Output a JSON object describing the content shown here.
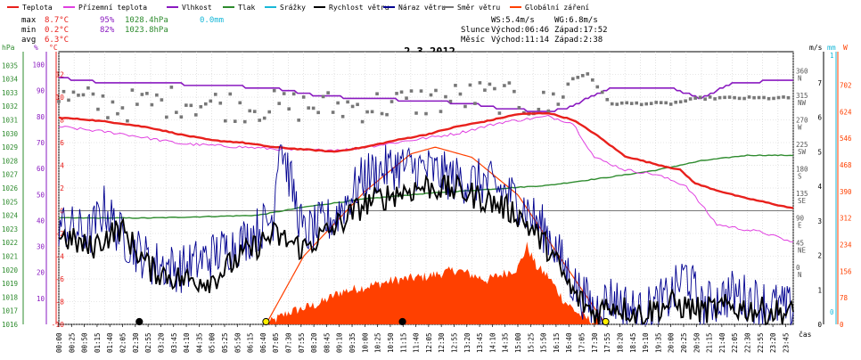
{
  "chart_data": {
    "type": "line",
    "title": "2.3.2012",
    "legend": [
      {
        "label": "Teplota",
        "color": "#e8201c"
      },
      {
        "label": "Přízemní teplota",
        "color": "#e040e0"
      },
      {
        "label": "Vlhkost",
        "color": "#8a1ac0"
      },
      {
        "label": "Tlak",
        "color": "#2e8b2e"
      },
      {
        "label": "Srážky",
        "color": "#19b8d8"
      },
      {
        "label": "Rychlost větru",
        "color": "#000000"
      },
      {
        "label": "Náraz větru",
        "color": "#000090"
      },
      {
        "label": "Směr větru",
        "color": "#777777"
      },
      {
        "label": "Globální záření",
        "color": "#ff4000"
      }
    ],
    "stats": {
      "max_label": "max",
      "max_temp": "8.7°C",
      "max_hum": "95%",
      "max_press": "1028.4hPa",
      "rain": "0.0mm",
      "min_label": "min",
      "min_temp": "0.2°C",
      "min_hum": "82%",
      "min_press": "1023.8hPa",
      "avg_label": "avg",
      "avg_temp": "6.3°C"
    },
    "sun_moon": {
      "ws": "WS:5.4m/s",
      "wg": "WG:6.8m/s",
      "sun_label": "Slunce",
      "sun_rise": "Východ:06:46",
      "sun_set": "Západ:17:52",
      "moon_label": "Měsíc",
      "moon_rise": "Východ:11:14",
      "moon_set": "Západ:2:38"
    },
    "axes": {
      "hpa_unit": "hPa",
      "hum_unit": "%",
      "temp_unit": "°C",
      "ms_unit": "m/s",
      "mm_unit": "mm",
      "w_unit": "W",
      "time_label": "čas",
      "hpa_ticks": [
        "1035",
        "1034",
        "1033",
        "1032",
        "1031",
        "1030",
        "1029",
        "1028",
        "1027",
        "1026",
        "1025",
        "1024",
        "1023",
        "1022",
        "1021",
        "1020",
        "1019",
        "1018",
        "1017",
        "1016"
      ],
      "hum_ticks": [
        "100",
        "90",
        "80",
        "70",
        "60",
        "50",
        "40",
        "30",
        "20",
        "10"
      ],
      "temp_ticks": [
        "12",
        "10",
        "8",
        "6",
        "4",
        "2",
        "0",
        "-2",
        "-4",
        "-6",
        "-8",
        "-10"
      ],
      "dir_ticks": [
        {
          "deg": "360",
          "dir": "N"
        },
        {
          "deg": "315",
          "dir": "NW"
        },
        {
          "deg": "270",
          "dir": "W"
        },
        {
          "deg": "225",
          "dir": "SW"
        },
        {
          "deg": "180",
          "dir": "S"
        },
        {
          "deg": "135",
          "dir": "SE"
        },
        {
          "deg": "90",
          "dir": "E"
        },
        {
          "deg": "45",
          "dir": "NE"
        },
        {
          "deg": "0",
          "dir": "N"
        }
      ],
      "wind_ticks": [
        "7",
        "6",
        "5",
        "4",
        "3",
        "2",
        "1",
        "0"
      ],
      "mm_ticks": [
        "1",
        "0"
      ],
      "rad_ticks": [
        "702",
        "624",
        "546",
        "468",
        "390",
        "312",
        "234",
        "156",
        "78",
        "0"
      ],
      "time_ticks": [
        "00:00",
        "00:25",
        "00:50",
        "01:15",
        "01:40",
        "02:05",
        "02:30",
        "02:55",
        "03:20",
        "03:45",
        "04:10",
        "04:35",
        "05:00",
        "05:25",
        "05:50",
        "06:15",
        "06:40",
        "07:05",
        "07:30",
        "07:55",
        "08:20",
        "08:45",
        "09:10",
        "09:35",
        "10:00",
        "10:25",
        "10:50",
        "11:15",
        "11:40",
        "12:05",
        "12:30",
        "12:55",
        "13:20",
        "13:45",
        "14:10",
        "14:35",
        "15:00",
        "15:25",
        "15:50",
        "16:15",
        "16:40",
        "17:05",
        "17:30",
        "17:55",
        "18:20",
        "18:45",
        "19:10",
        "19:35",
        "20:00",
        "20:25",
        "20:50",
        "21:15",
        "21:40",
        "22:05",
        "22:30",
        "22:55",
        "23:20",
        "23:45"
      ]
    },
    "series_keyframes": {
      "temperature_c": [
        [
          0,
          8.2
        ],
        [
          1,
          8.0
        ],
        [
          2,
          7.7
        ],
        [
          3,
          7.3
        ],
        [
          4,
          6.7
        ],
        [
          5,
          6.2
        ],
        [
          6,
          6.0
        ],
        [
          7,
          5.6
        ],
        [
          8,
          5.4
        ],
        [
          9,
          5.2
        ],
        [
          10,
          5.6
        ],
        [
          11,
          6.2
        ],
        [
          12,
          6.7
        ],
        [
          13,
          7.4
        ],
        [
          14,
          7.9
        ],
        [
          15,
          8.5
        ],
        [
          16,
          8.6
        ],
        [
          16.8,
          8.0
        ],
        [
          17.5,
          6.8
        ],
        [
          18.5,
          4.8
        ],
        [
          19.5,
          4.1
        ],
        [
          20.3,
          3.6
        ],
        [
          20.8,
          2.4
        ],
        [
          21.5,
          1.8
        ],
        [
          22.3,
          1.2
        ],
        [
          23,
          0.8
        ],
        [
          24,
          0.2
        ]
      ],
      "ground_temp_c": [
        [
          0,
          7.4
        ],
        [
          2,
          6.8
        ],
        [
          4,
          5.9
        ],
        [
          6,
          5.6
        ],
        [
          8,
          5.3
        ],
        [
          9.5,
          5.4
        ],
        [
          11,
          6.0
        ],
        [
          13,
          6.8
        ],
        [
          14.5,
          7.8
        ],
        [
          16,
          8.3
        ],
        [
          16.8,
          7.7
        ],
        [
          17.5,
          4.7
        ],
        [
          18.5,
          3.6
        ],
        [
          19.5,
          3.2
        ],
        [
          20.5,
          2.2
        ],
        [
          21,
          0.5
        ],
        [
          21.5,
          -1.2
        ],
        [
          22.3,
          -1.6
        ],
        [
          23,
          -1.9
        ],
        [
          24,
          -2.8
        ]
      ],
      "humidity_pct": [
        [
          0,
          95
        ],
        [
          1.5,
          93
        ],
        [
          3,
          93
        ],
        [
          5,
          92
        ],
        [
          7,
          91
        ],
        [
          8.5,
          88
        ],
        [
          10,
          87
        ],
        [
          12,
          86
        ],
        [
          13.5,
          85
        ],
        [
          14.5,
          83
        ],
        [
          16,
          82
        ],
        [
          16.8,
          84
        ],
        [
          17.2,
          87
        ],
        [
          18,
          91
        ],
        [
          19,
          91
        ],
        [
          20,
          91
        ],
        [
          21,
          87
        ],
        [
          22,
          93
        ],
        [
          24,
          94
        ]
      ],
      "pressure_hpa": [
        [
          0,
          1023.8
        ],
        [
          3,
          1023.8
        ],
        [
          6.5,
          1024.0
        ],
        [
          8,
          1024.6
        ],
        [
          10,
          1025.2
        ],
        [
          12,
          1025.6
        ],
        [
          14,
          1025.9
        ],
        [
          16,
          1026.2
        ],
        [
          18,
          1026.8
        ],
        [
          19.5,
          1027.3
        ],
        [
          21,
          1028.0
        ],
        [
          22.5,
          1028.4
        ],
        [
          24,
          1028.4
        ]
      ],
      "wind_speed_ms": [
        [
          0,
          2.6
        ],
        [
          1,
          2.2
        ],
        [
          2,
          2.8
        ],
        [
          3,
          1.6
        ],
        [
          4,
          1.3
        ],
        [
          5,
          1.3
        ],
        [
          6,
          2.0
        ],
        [
          7,
          2.6
        ],
        [
          8,
          2.2
        ],
        [
          9,
          2.8
        ],
        [
          10,
          3.5
        ],
        [
          11,
          3.8
        ],
        [
          12,
          4.0
        ],
        [
          13,
          3.9
        ],
        [
          14,
          3.6
        ],
        [
          15,
          3.2
        ],
        [
          16,
          2.2
        ],
        [
          16.8,
          0.9
        ],
        [
          17.5,
          0.3
        ],
        [
          18,
          0.6
        ],
        [
          19,
          0.3
        ],
        [
          20,
          0.6
        ],
        [
          21,
          0.4
        ],
        [
          22,
          0.5
        ],
        [
          24,
          0.3
        ]
      ],
      "wind_gust_ms": [
        [
          0,
          2.9
        ],
        [
          1,
          2.6
        ],
        [
          1.5,
          3.4
        ],
        [
          2,
          2.6
        ],
        [
          3,
          1.8
        ],
        [
          4,
          1.6
        ],
        [
          6,
          2.4
        ],
        [
          7,
          3.1
        ],
        [
          7.2,
          5.5
        ],
        [
          8,
          2.6
        ],
        [
          9,
          3.1
        ],
        [
          10,
          4.3
        ],
        [
          11,
          4.6
        ],
        [
          12,
          4.5
        ],
        [
          13,
          4.2
        ],
        [
          14,
          4.1
        ],
        [
          15,
          3.6
        ],
        [
          16,
          2.6
        ],
        [
          16.8,
          1.2
        ],
        [
          17.5,
          0.4
        ],
        [
          18,
          0.8
        ],
        [
          19,
          0.3
        ],
        [
          20,
          0.8
        ],
        [
          20.5,
          1.5
        ],
        [
          21,
          0.5
        ],
        [
          22,
          0.9
        ],
        [
          24,
          0.4
        ]
      ],
      "wind_dir_deg": [
        [
          0,
          315
        ],
        [
          2,
          300
        ],
        [
          4,
          310
        ],
        [
          6,
          300
        ],
        [
          8,
          300
        ],
        [
          10,
          300
        ],
        [
          12,
          310
        ],
        [
          14,
          320
        ],
        [
          16,
          300
        ],
        [
          16.8,
          350
        ],
        [
          17.3,
          360
        ],
        [
          18,
          305
        ],
        [
          20,
          305
        ],
        [
          21,
          315
        ],
        [
          24,
          315
        ]
      ],
      "radiation_wm2": [
        [
          6.8,
          0
        ],
        [
          7.5,
          35
        ],
        [
          8.5,
          60
        ],
        [
          9.2,
          95
        ],
        [
          10,
          110
        ],
        [
          11,
          130
        ],
        [
          12,
          140
        ],
        [
          13,
          160
        ],
        [
          14,
          130
        ],
        [
          15,
          165
        ],
        [
          15.3,
          230
        ],
        [
          15.6,
          170
        ],
        [
          16,
          140
        ],
        [
          16.5,
          70
        ],
        [
          17,
          30
        ],
        [
          17.5,
          5
        ],
        [
          17.9,
          0
        ]
      ],
      "clear_sky_wm2": [
        [
          6.77,
          0
        ],
        [
          8,
          200
        ],
        [
          10,
          390
        ],
        [
          11.5,
          500
        ],
        [
          12.3,
          520
        ],
        [
          13.5,
          490
        ],
        [
          15,
          380
        ],
        [
          16.5,
          180
        ],
        [
          17.87,
          0
        ]
      ]
    }
  }
}
